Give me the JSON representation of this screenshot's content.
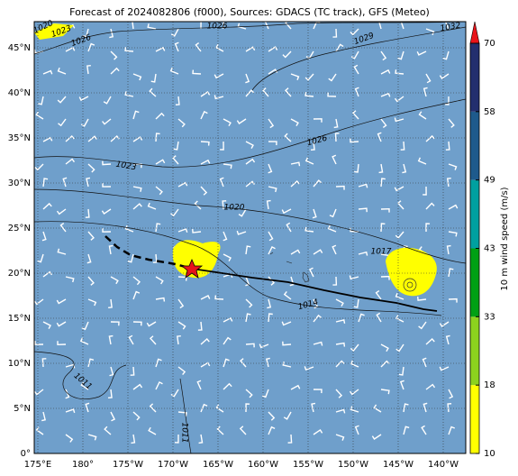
{
  "header": {
    "title": "Forecast of 2024082806 (f000), Sources: GDACS (TC track), GFS (Meteo)"
  },
  "map": {
    "xticks": [
      {
        "value": 175,
        "label": "175°E"
      },
      {
        "value": 180,
        "label": "180°"
      },
      {
        "value": -175,
        "label": "175°W"
      },
      {
        "value": -170,
        "label": "170°W"
      },
      {
        "value": -165,
        "label": "165°W"
      },
      {
        "value": -160,
        "label": "160°W"
      },
      {
        "value": -155,
        "label": "155°W"
      },
      {
        "value": -150,
        "label": "150°W"
      },
      {
        "value": -145,
        "label": "145°W"
      },
      {
        "value": -140,
        "label": "140°W"
      }
    ],
    "yticks": [
      {
        "value": 0,
        "label": "0°"
      },
      {
        "value": 5,
        "label": "5°N"
      },
      {
        "value": 10,
        "label": "10°N"
      },
      {
        "value": 15,
        "label": "15°N"
      },
      {
        "value": 20,
        "label": "20°N"
      },
      {
        "value": 25,
        "label": "25°N"
      },
      {
        "value": 30,
        "label": "30°N"
      },
      {
        "value": 35,
        "label": "35°N"
      },
      {
        "value": 40,
        "label": "40°N"
      },
      {
        "value": 45,
        "label": "45°N"
      }
    ],
    "contour_labels": [
      "1020",
      "1023",
      "1026",
      "1026",
      "1029",
      "1032",
      "1026",
      "1023",
      "1020",
      "1017",
      "1014",
      "1011",
      "1011"
    ]
  },
  "colorbar": {
    "label": "10 m wind speed (m/s)",
    "ticks": [
      10,
      18,
      33,
      43,
      49,
      58,
      70
    ]
  }
}
